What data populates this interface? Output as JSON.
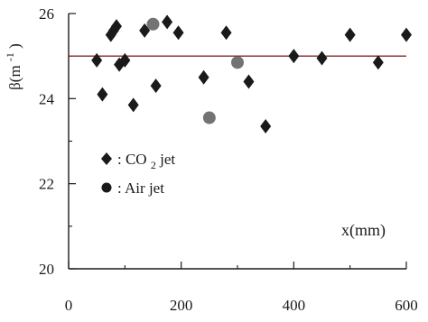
{
  "chart_data": {
    "type": "scatter",
    "title": "",
    "xlabel": "x(mm)",
    "ylabel": "β(m",
    "ylabel_superscript": "-1",
    "ylabel_close": ")",
    "xlim": [
      0,
      600
    ],
    "ylim": [
      20,
      26
    ],
    "x_ticks": [
      0,
      200,
      400,
      600
    ],
    "y_ticks": [
      20,
      22,
      24,
      26
    ],
    "grid": false,
    "legend_position": "middle-left",
    "reference_line": {
      "y": 25.0,
      "color": "#8a2a2a"
    },
    "series": [
      {
        "name": ": CO2 jet",
        "legend_label_prefix": ": CO",
        "legend_label_subscript": "2",
        "legend_label_suffix": " jet",
        "marker": "diamond",
        "color": "#1a1a1a",
        "points": [
          {
            "x": 50,
            "y": 24.9
          },
          {
            "x": 60,
            "y": 24.1
          },
          {
            "x": 75,
            "y": 25.5
          },
          {
            "x": 80,
            "y": 25.6
          },
          {
            "x": 85,
            "y": 25.7
          },
          {
            "x": 90,
            "y": 24.8
          },
          {
            "x": 100,
            "y": 24.9
          },
          {
            "x": 115,
            "y": 23.85
          },
          {
            "x": 135,
            "y": 25.6
          },
          {
            "x": 155,
            "y": 24.3
          },
          {
            "x": 175,
            "y": 25.8
          },
          {
            "x": 195,
            "y": 25.55
          },
          {
            "x": 240,
            "y": 24.5
          },
          {
            "x": 280,
            "y": 25.55
          },
          {
            "x": 320,
            "y": 24.4
          },
          {
            "x": 350,
            "y": 23.35
          },
          {
            "x": 400,
            "y": 25.0
          },
          {
            "x": 450,
            "y": 24.95
          },
          {
            "x": 500,
            "y": 25.5
          },
          {
            "x": 550,
            "y": 24.85
          },
          {
            "x": 600,
            "y": 25.5
          }
        ]
      },
      {
        "name": ": Air jet",
        "legend_label_prefix": ": Air jet",
        "legend_label_subscript": "",
        "legend_label_suffix": "",
        "marker": "circle",
        "color": "#5a5a5a",
        "points": [
          {
            "x": 150,
            "y": 25.75
          },
          {
            "x": 250,
            "y": 23.55
          },
          {
            "x": 300,
            "y": 24.85
          }
        ]
      }
    ]
  }
}
